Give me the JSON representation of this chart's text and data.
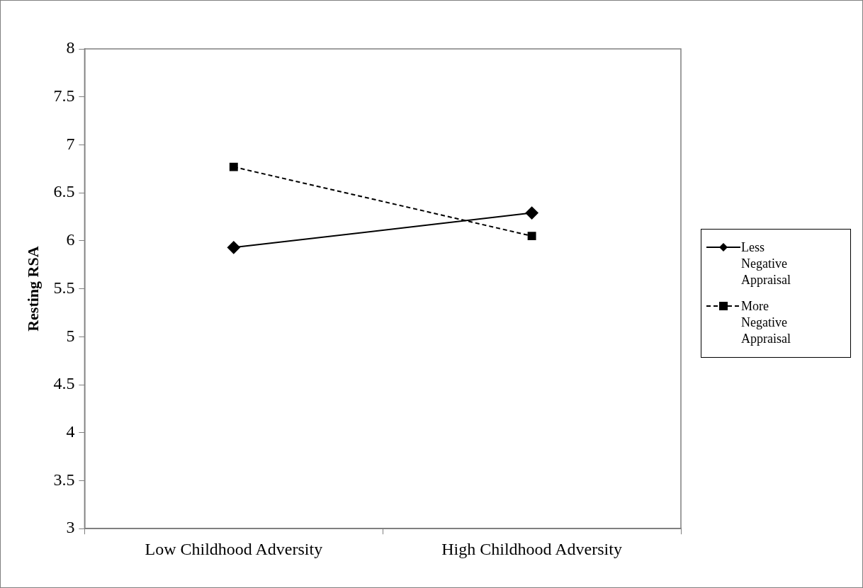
{
  "chart_data": {
    "type": "line",
    "ylabel": "Resting RSA",
    "categories": [
      "Low Childhood Adversity",
      "High Childhood Adversity"
    ],
    "series": [
      {
        "name": "Less Negative Appraisal",
        "color": "#000000",
        "values": [
          5.93,
          6.29
        ],
        "marker": "diamond",
        "line_style": "solid"
      },
      {
        "name": "More Negative Appraisal",
        "color": "#000000",
        "values": [
          6.77,
          6.05
        ],
        "marker": "square",
        "line_style": "dashed"
      }
    ],
    "ylim": [
      3,
      8
    ],
    "yticks": [
      3,
      3.5,
      4,
      4.5,
      5,
      5.5,
      6,
      6.5,
      7,
      7.5,
      8
    ],
    "grid": false,
    "legend": "right"
  }
}
